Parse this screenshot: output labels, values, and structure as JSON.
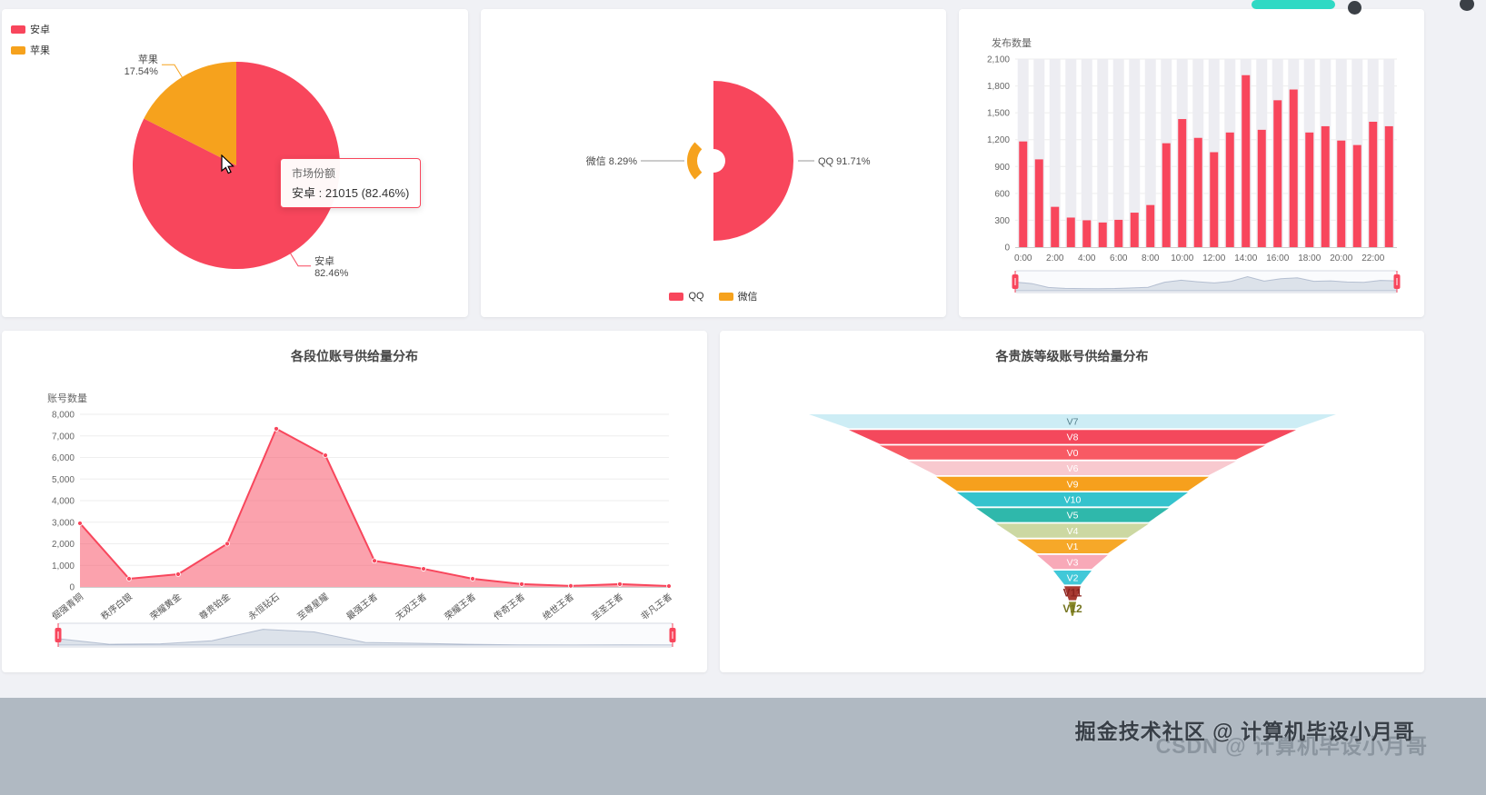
{
  "page": {
    "footer_front": "掘金技术社区 @ 计算机毕设小月哥",
    "footer_back": "CSDN @ 计算机毕设小月哥"
  },
  "decor": {
    "pill_color": "#2fd9c4",
    "dot_color": "#3b4046"
  },
  "chart_data": [
    {
      "id": "market-share-pie",
      "type": "pie",
      "legend_position": "top-left",
      "slices": [
        {
          "name": "安卓",
          "value": 21015,
          "percent": 82.46,
          "color": "#f8465c"
        },
        {
          "name": "苹果",
          "percent": 17.54,
          "color": "#f6a21d"
        }
      ],
      "tooltip": {
        "title": "市场份额",
        "value_line": "安卓 : 21015 (82.46%)"
      }
    },
    {
      "id": "platform-share-pie",
      "type": "pie",
      "subtype": "half-rose-donut",
      "legend_position": "bottom-center",
      "slices": [
        {
          "name": "QQ",
          "percent": 91.71,
          "color": "#f8465c"
        },
        {
          "name": "微信",
          "percent": 8.29,
          "color": "#f6a21d"
        }
      ]
    },
    {
      "id": "publish-count-bar",
      "type": "bar",
      "ylabel": "发布数量",
      "ylim": [
        0,
        2100
      ],
      "ytick_step": 300,
      "bar_color": "#f8465c",
      "background_bar_color": "#ededf2",
      "categories": [
        "0:00",
        "1:00",
        "2:00",
        "3:00",
        "4:00",
        "5:00",
        "6:00",
        "7:00",
        "8:00",
        "9:00",
        "10:00",
        "11:00",
        "12:00",
        "13:00",
        "14:00",
        "15:00",
        "16:00",
        "17:00",
        "18:00",
        "19:00",
        "20:00",
        "21:00",
        "22:00",
        "23:00"
      ],
      "xlabel_every": 2,
      "values": [
        1180,
        980,
        450,
        330,
        300,
        275,
        305,
        385,
        470,
        1160,
        1430,
        1220,
        1060,
        1280,
        1920,
        1310,
        1640,
        1760,
        1280,
        1350,
        1190,
        1140,
        1400,
        1350
      ],
      "datazoom": true
    },
    {
      "id": "rank-supply-area",
      "type": "area",
      "title": "各段位账号供给量分布",
      "ylabel": "账号数量",
      "ylim": [
        0,
        8000
      ],
      "ytick_step": 1000,
      "line_color": "#f8465c",
      "categories": [
        "倔强青铜",
        "秩序白银",
        "荣耀黄金",
        "尊贵铂金",
        "永恒钻石",
        "至尊星耀",
        "最强王者",
        "无双王者",
        "荣耀王者",
        "传奇王者",
        "绝世王者",
        "至圣王者",
        "非凡王者"
      ],
      "values": [
        2950,
        380,
        590,
        2000,
        7330,
        6100,
        1210,
        840,
        380,
        130,
        50,
        130,
        40
      ],
      "datazoom": true
    },
    {
      "id": "noble-supply-funnel",
      "type": "funnel",
      "title": "各贵族等级账号供给量分布",
      "levels": [
        {
          "label": "V7",
          "rel_width": 580,
          "color": "#cdedf5",
          "label_color": "#55808d"
        },
        {
          "label": "V8",
          "rel_width": 492,
          "color": "#f4485c",
          "label_color": "#ffffff"
        },
        {
          "label": "V0",
          "rel_width": 424,
          "color": "#f85a64",
          "label_color": "#ffffff"
        },
        {
          "label": "V6",
          "rel_width": 360,
          "color": "#f8c9cf",
          "label_color": "#ffffff"
        },
        {
          "label": "V9",
          "rel_width": 300,
          "color": "#f6a01d",
          "label_color": "#ffffff"
        },
        {
          "label": "V10",
          "rel_width": 254,
          "color": "#35c3cd",
          "label_color": "#ffffff"
        },
        {
          "label": "V5",
          "rel_width": 212,
          "color": "#2fb8ab",
          "label_color": "#ffffff"
        },
        {
          "label": "V4",
          "rel_width": 168,
          "color": "#ccd8a2",
          "label_color": "#ffffff"
        },
        {
          "label": "V1",
          "rel_width": 122,
          "color": "#f6a829",
          "label_color": "#ffffff"
        },
        {
          "label": "V3",
          "rel_width": 78,
          "color": "#f8a9b8",
          "label_color": "#ffffff"
        },
        {
          "label": "V2",
          "rel_width": 42,
          "color": "#41c8d8",
          "label_color": "#ffffff"
        },
        {
          "label": "V11",
          "rel_width": 18,
          "color": "#a83a32",
          "label_color": "#8c2420",
          "bold": true
        },
        {
          "label": "V12",
          "rel_width": 8,
          "color": "#8a8a2a",
          "label_color": "#74741f",
          "bold": true
        }
      ]
    }
  ]
}
